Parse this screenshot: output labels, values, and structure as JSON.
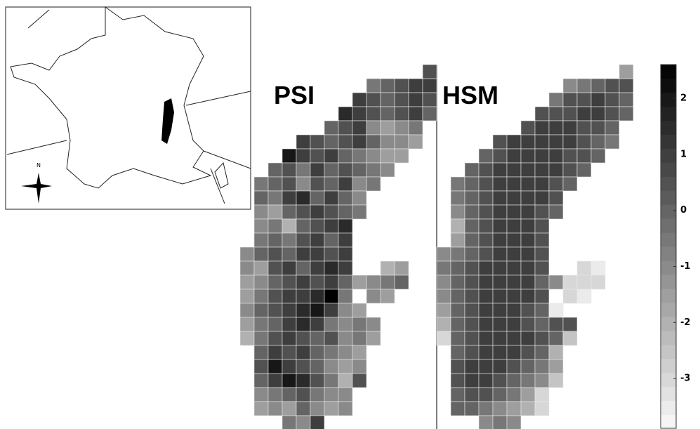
{
  "inset": {
    "north_label": "N"
  },
  "colorbar": {
    "clim": [
      -3.9,
      2.6
    ],
    "ticks": [
      2,
      1,
      0,
      -1,
      -2,
      -3
    ]
  },
  "maps": [
    {
      "title": "PSI",
      "rows": [
        [
          null,
          null,
          null,
          null,
          null,
          null,
          null,
          null,
          null,
          null,
          null,
          null,
          null,
          0.5
        ],
        [
          null,
          null,
          null,
          null,
          null,
          null,
          null,
          null,
          null,
          -0.5,
          0,
          0.5,
          1,
          1
        ],
        [
          null,
          null,
          null,
          null,
          null,
          null,
          null,
          null,
          1,
          0.5,
          0,
          0.5,
          1,
          0.5
        ],
        [
          null,
          null,
          null,
          null,
          null,
          null,
          null,
          1.5,
          1,
          0.5,
          0,
          0.5,
          1,
          0
        ],
        [
          null,
          null,
          null,
          null,
          null,
          null,
          0,
          0.5,
          1,
          -1,
          -1.5,
          -1,
          -0.5,
          null
        ],
        [
          null,
          null,
          null,
          null,
          1,
          0.5,
          0,
          0.5,
          1,
          0,
          -1,
          -1,
          -1.5,
          null
        ],
        [
          null,
          null,
          null,
          2,
          1,
          0.5,
          1,
          0,
          -0.5,
          -1,
          -1.5,
          -1.5,
          null,
          null
        ],
        [
          null,
          null,
          0,
          0.5,
          -0.5,
          1,
          0,
          0.5,
          0,
          -0.5,
          -1,
          null,
          null,
          null
        ],
        [
          null,
          -0.5,
          0,
          0.5,
          -1,
          0.5,
          0,
          1,
          -1,
          -0.5,
          null,
          null,
          null,
          null
        ],
        [
          null,
          0,
          -0.5,
          1,
          1.5,
          0,
          1,
          0,
          -1,
          null,
          null,
          null,
          null,
          null
        ],
        [
          null,
          -1,
          -1.5,
          0,
          0.5,
          1,
          0.5,
          0,
          -0.5,
          null,
          null,
          null,
          null,
          null
        ],
        [
          null,
          -1,
          -0.5,
          -2,
          0,
          0.5,
          1,
          1.5,
          null,
          null,
          null,
          null,
          null,
          null
        ],
        [
          null,
          -0.5,
          0,
          -0.5,
          0.5,
          1,
          0,
          1,
          null,
          null,
          null,
          null,
          null,
          null
        ],
        [
          -1,
          0,
          0.5,
          0,
          1,
          1,
          0.5,
          1,
          null,
          null,
          null,
          null,
          null,
          null
        ],
        [
          -1,
          -1.5,
          0.5,
          1,
          0,
          1,
          1.5,
          1,
          null,
          null,
          -2,
          -1.5,
          null,
          null
        ],
        [
          -1.5,
          -1,
          0,
          0.5,
          1,
          0.5,
          1,
          0,
          -1.5,
          -1,
          -0.5,
          0,
          null,
          null
        ],
        [
          -1.5,
          -0.5,
          0.5,
          1,
          1,
          1.5,
          2.6,
          -0.5,
          null,
          -1,
          -1.5,
          null,
          null,
          null
        ],
        [
          -1,
          0,
          0.5,
          1,
          1.5,
          2,
          1,
          -1,
          -1.5,
          null,
          null,
          null,
          null,
          null
        ],
        [
          -1.5,
          -0.5,
          0,
          1,
          1.5,
          1,
          -0.5,
          -1,
          -0.5,
          -1,
          null,
          null,
          null,
          null
        ],
        [
          -2,
          -0.5,
          0.5,
          1,
          0.5,
          0,
          0.5,
          -1,
          -0.5,
          -1.5,
          null,
          null,
          null,
          null
        ],
        [
          null,
          0,
          1,
          0.5,
          1,
          0,
          -0.5,
          -1,
          -1.5,
          null,
          null,
          null,
          null,
          null
        ],
        [
          null,
          0.5,
          2,
          1,
          0.5,
          0,
          -1,
          -1.5,
          -1,
          null,
          null,
          null,
          null,
          null
        ],
        [
          null,
          0,
          1,
          2,
          1.5,
          0.5,
          -0.5,
          -2,
          0.5,
          null,
          null,
          null,
          null,
          null
        ],
        [
          null,
          -1,
          -0.5,
          0,
          0.5,
          -0.5,
          -1,
          -1,
          null,
          null,
          null,
          null,
          null,
          null
        ],
        [
          null,
          -1.5,
          -1,
          -1.5,
          0,
          -1,
          -1.5,
          -1,
          null,
          null,
          null,
          null,
          null,
          null
        ],
        [
          null,
          null,
          null,
          -0.5,
          -1,
          1,
          null,
          null,
          null,
          null,
          null,
          null,
          null,
          null
        ]
      ]
    },
    {
      "title": "HSM",
      "rows": [
        [
          null,
          null,
          null,
          null,
          null,
          null,
          null,
          null,
          null,
          null,
          null,
          null,
          null,
          -1.5
        ],
        [
          null,
          null,
          null,
          null,
          null,
          null,
          null,
          null,
          null,
          -1,
          -0.5,
          0,
          0.5,
          0.5
        ],
        [
          null,
          null,
          null,
          null,
          null,
          null,
          null,
          null,
          -0.5,
          0.5,
          0.5,
          1,
          0.5,
          0
        ],
        [
          null,
          null,
          null,
          null,
          null,
          null,
          null,
          0.5,
          0.5,
          0.5,
          1,
          1,
          0.5,
          0
        ],
        [
          null,
          null,
          null,
          null,
          null,
          null,
          0.5,
          1,
          1,
          1,
          0.5,
          0.5,
          0,
          null
        ],
        [
          null,
          null,
          null,
          null,
          0.5,
          1,
          1,
          1,
          1,
          1,
          0.5,
          0,
          -0.5,
          null
        ],
        [
          null,
          null,
          null,
          0,
          0.5,
          1,
          1,
          1,
          1,
          0.5,
          0.5,
          0,
          null,
          null
        ],
        [
          null,
          null,
          0,
          0.5,
          1,
          1,
          1,
          1,
          1,
          0.5,
          0,
          null,
          null,
          null
        ],
        [
          null,
          -0.5,
          0,
          0.5,
          1,
          1,
          1,
          1,
          0.5,
          0,
          null,
          null,
          null,
          null
        ],
        [
          null,
          -0.5,
          0,
          0.5,
          1,
          1,
          1,
          1,
          0.5,
          null,
          null,
          null,
          null,
          null
        ],
        [
          null,
          -1,
          0,
          0.5,
          1,
          1,
          1,
          0.5,
          0,
          null,
          null,
          null,
          null,
          null
        ],
        [
          null,
          -2,
          0,
          0.5,
          1,
          1,
          1,
          0.5,
          null,
          null,
          null,
          null,
          null,
          null
        ],
        [
          null,
          -1.5,
          0,
          0.5,
          1,
          1,
          1,
          0.5,
          null,
          null,
          null,
          null,
          null,
          null
        ],
        [
          -1,
          -0.5,
          0,
          0.5,
          1,
          1,
          1,
          0.5,
          null,
          null,
          null,
          null,
          null,
          null
        ],
        [
          -0.5,
          0,
          0.5,
          1,
          1,
          1,
          1,
          0.5,
          null,
          null,
          -3,
          -3.5,
          null,
          null
        ],
        [
          -1,
          0,
          0.5,
          1,
          1,
          1,
          1,
          0,
          -1,
          -3,
          -3,
          -3,
          null,
          null
        ],
        [
          -1,
          0,
          0.5,
          1,
          1,
          1,
          1,
          0.5,
          null,
          -3,
          -3.5,
          null,
          null,
          null
        ],
        [
          -1.5,
          0,
          0.5,
          1,
          1,
          1,
          0.5,
          0,
          -3.5,
          null,
          null,
          null,
          null,
          null
        ],
        [
          -2,
          0,
          0.5,
          1,
          1,
          1,
          0.5,
          0,
          0.5,
          0.5,
          null,
          null,
          null,
          null
        ],
        [
          -3,
          0,
          0.5,
          1,
          1,
          1,
          1,
          0.5,
          0,
          -2.5,
          null,
          null,
          null,
          null
        ],
        [
          null,
          0,
          0.5,
          1,
          1,
          1,
          0.5,
          0,
          -2,
          null,
          null,
          null,
          null,
          null
        ],
        [
          null,
          0.5,
          1,
          1,
          1,
          0.5,
          0,
          -0.5,
          -1.5,
          null,
          null,
          null,
          null,
          null
        ],
        [
          null,
          0.5,
          1,
          1,
          0.5,
          0,
          -0.5,
          -1,
          -2.5,
          null,
          null,
          null,
          null,
          null
        ],
        [
          null,
          0,
          0.5,
          0.5,
          0,
          -0.5,
          -1.5,
          -3,
          null,
          null,
          null,
          null,
          null,
          null
        ],
        [
          null,
          0,
          0,
          -0.5,
          -1,
          -1.5,
          -2,
          -3,
          null,
          null,
          null,
          null,
          null,
          null
        ],
        [
          null,
          null,
          null,
          -1,
          -0.5,
          -1,
          null,
          null,
          null,
          null,
          null,
          null,
          null,
          null
        ]
      ]
    }
  ]
}
